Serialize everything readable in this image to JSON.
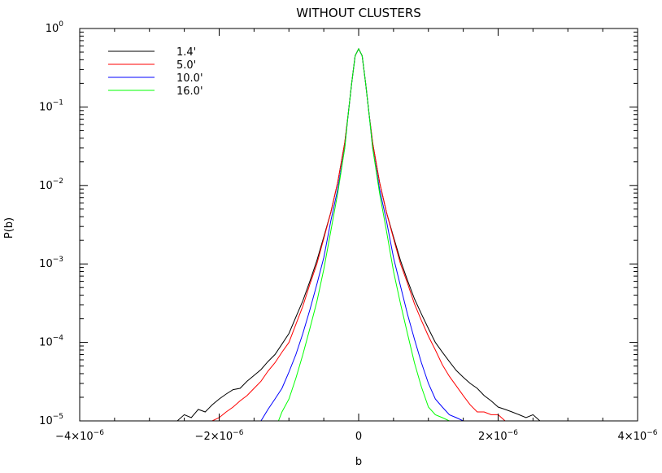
{
  "chart_data": {
    "type": "line",
    "title": "WITHOUT CLUSTERS",
    "xlabel": "b",
    "ylabel": "P(b)",
    "xlim": [
      -4e-06,
      4e-06
    ],
    "ylim": [
      1e-05,
      1
    ],
    "yscale": "log",
    "grid": false,
    "legend_position": "top-left",
    "x_ticks": [
      {
        "value": -4e-06,
        "mantissa": "−4×10",
        "exp": "−6"
      },
      {
        "value": -2e-06,
        "mantissa": "−2×10",
        "exp": "−6"
      },
      {
        "value": 0,
        "mantissa": "0",
        "exp": ""
      },
      {
        "value": 2e-06,
        "mantissa": "2×10",
        "exp": "−6"
      },
      {
        "value": 4e-06,
        "mantissa": "4×10",
        "exp": "−6"
      }
    ],
    "y_ticks": [
      {
        "value": 1,
        "base": "10",
        "exp": "0"
      },
      {
        "value": 0.1,
        "base": "10",
        "exp": "−1"
      },
      {
        "value": 0.01,
        "base": "10",
        "exp": "−2"
      },
      {
        "value": 0.001,
        "base": "10",
        "exp": "−3"
      },
      {
        "value": 0.0001,
        "base": "10",
        "exp": "−4"
      },
      {
        "value": 1e-05,
        "base": "10",
        "exp": "−5"
      }
    ],
    "series": [
      {
        "name": "1.4'",
        "color": "#000000",
        "x": [
          -2.6e-06,
          -2.5e-06,
          -2.4e-06,
          -2.3e-06,
          -2.2e-06,
          -2.1e-06,
          -2e-06,
          -1.9e-06,
          -1.8e-06,
          -1.7e-06,
          -1.6e-06,
          -1.5e-06,
          -1.4e-06,
          -1.3e-06,
          -1.2e-06,
          -1.1e-06,
          -1e-06,
          -9e-07,
          -8e-07,
          -7e-07,
          -6e-07,
          -5e-07,
          -4e-07,
          -3e-07,
          -2e-07,
          -1.5e-07,
          -1e-07,
          -5e-08,
          0,
          5e-08,
          1e-07,
          1.5e-07,
          2e-07,
          3e-07,
          4e-07,
          5e-07,
          6e-07,
          7e-07,
          8e-07,
          9e-07,
          1e-06,
          1.1e-06,
          1.2e-06,
          1.3e-06,
          1.4e-06,
          1.5e-06,
          1.6e-06,
          1.7e-06,
          1.8e-06,
          1.9e-06,
          2e-06,
          2.1e-06,
          2.2e-06,
          2.3e-06,
          2.4e-06,
          2.5e-06,
          2.6e-06
        ],
        "y": [
          1e-05,
          1.2e-05,
          1.1e-05,
          1.4e-05,
          1.3e-05,
          1.6e-05,
          1.9e-05,
          2.2e-05,
          2.5e-05,
          2.6e-05,
          3.2e-05,
          3.8e-05,
          4.5e-05,
          5.7e-05,
          7e-05,
          9.5e-05,
          0.00013,
          0.00021,
          0.00034,
          0.0006,
          0.0011,
          0.0022,
          0.0045,
          0.011,
          0.035,
          0.08,
          0.2,
          0.45,
          0.55,
          0.45,
          0.2,
          0.08,
          0.035,
          0.011,
          0.0045,
          0.0022,
          0.0011,
          0.00062,
          0.00036,
          0.00023,
          0.00015,
          0.0001,
          7.5e-05,
          5.7e-05,
          4.4e-05,
          3.6e-05,
          3e-05,
          2.6e-05,
          2.1e-05,
          1.8e-05,
          1.5e-05,
          1.4e-05,
          1.3e-05,
          1.2e-05,
          1.1e-05,
          1.2e-05,
          1e-05
        ]
      },
      {
        "name": "5.0'",
        "color": "#ff0000",
        "x": [
          -2.1e-06,
          -2e-06,
          -1.9e-06,
          -1.8e-06,
          -1.7e-06,
          -1.6e-06,
          -1.5e-06,
          -1.4e-06,
          -1.3e-06,
          -1.2e-06,
          -1.1e-06,
          -1e-06,
          -9e-07,
          -8e-07,
          -7e-07,
          -6e-07,
          -5e-07,
          -4e-07,
          -3e-07,
          -2e-07,
          -1.5e-07,
          -1e-07,
          -5e-08,
          0,
          5e-08,
          1e-07,
          1.5e-07,
          2e-07,
          3e-07,
          4e-07,
          5e-07,
          6e-07,
          7e-07,
          8e-07,
          9e-07,
          1e-06,
          1.1e-06,
          1.2e-06,
          1.3e-06,
          1.4e-06,
          1.5e-06,
          1.6e-06,
          1.7e-06,
          1.8e-06,
          1.9e-06,
          2e-06,
          2.1e-06
        ],
        "y": [
          1e-05,
          1.1e-05,
          1.3e-05,
          1.5e-05,
          1.8e-05,
          2.1e-05,
          2.6e-05,
          3.2e-05,
          4.3e-05,
          5.5e-05,
          7.5e-05,
          0.0001,
          0.00017,
          0.00029,
          0.00055,
          0.001,
          0.0021,
          0.0045,
          0.011,
          0.035,
          0.08,
          0.2,
          0.45,
          0.55,
          0.45,
          0.2,
          0.08,
          0.035,
          0.011,
          0.0045,
          0.0021,
          0.001,
          0.00057,
          0.00031,
          0.00019,
          0.00012,
          8e-05,
          5.2e-05,
          3.7e-05,
          2.8e-05,
          2.1e-05,
          1.6e-05,
          1.3e-05,
          1.3e-05,
          1.2e-05,
          1.2e-05,
          1e-05
        ]
      },
      {
        "name": "10.0'",
        "color": "#0000ff",
        "x": [
          -1.4e-06,
          -1.3e-06,
          -1.2e-06,
          -1.1e-06,
          -1e-06,
          -9e-07,
          -8e-07,
          -7e-07,
          -6e-07,
          -5e-07,
          -4e-07,
          -3e-07,
          -2e-07,
          -1.5e-07,
          -1e-07,
          -5e-08,
          0,
          5e-08,
          1e-07,
          1.5e-07,
          2e-07,
          3e-07,
          4e-07,
          5e-07,
          6e-07,
          7e-07,
          8e-07,
          9e-07,
          1e-06,
          1.1e-06,
          1.2e-06,
          1.3e-06,
          1.4e-06,
          1.5e-06
        ],
        "y": [
          1e-05,
          1.4e-05,
          1.9e-05,
          2.6e-05,
          4.2e-05,
          7e-05,
          0.00013,
          0.00026,
          0.00055,
          0.0012,
          0.0035,
          0.009,
          0.03,
          0.08,
          0.2,
          0.45,
          0.55,
          0.45,
          0.2,
          0.08,
          0.03,
          0.009,
          0.0035,
          0.0012,
          0.00052,
          0.00023,
          0.00011,
          5.5e-05,
          3e-05,
          1.9e-05,
          1.5e-05,
          1.2e-05,
          1.1e-05,
          1e-05
        ]
      },
      {
        "name": "16.0'",
        "color": "#00ff00",
        "x": [
          -1.15e-06,
          -1.1e-06,
          -1e-06,
          -9e-07,
          -8e-07,
          -7e-07,
          -6e-07,
          -5e-07,
          -4e-07,
          -3e-07,
          -2e-07,
          -1.5e-07,
          -1e-07,
          -5e-08,
          0,
          5e-08,
          1e-07,
          1.5e-07,
          2e-07,
          3e-07,
          4e-07,
          5e-07,
          6e-07,
          7e-07,
          8e-07,
          9e-07,
          1e-06,
          1.1e-06,
          1.2e-06,
          1.3e-06
        ],
        "y": [
          1e-05,
          1.3e-05,
          1.9e-05,
          3.5e-05,
          7e-05,
          0.00015,
          0.00033,
          0.00085,
          0.0026,
          0.008,
          0.03,
          0.08,
          0.2,
          0.45,
          0.55,
          0.45,
          0.2,
          0.08,
          0.03,
          0.008,
          0.0026,
          0.0008,
          0.00031,
          0.00013,
          5.5e-05,
          2.7e-05,
          1.5e-05,
          1.2e-05,
          1.1e-05,
          1e-05
        ]
      }
    ]
  }
}
